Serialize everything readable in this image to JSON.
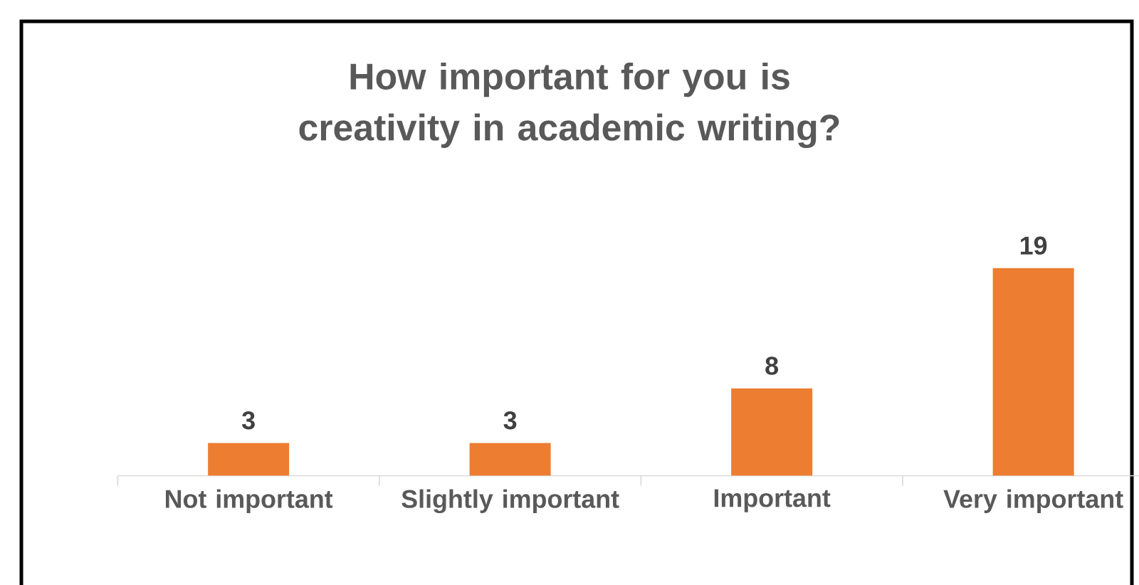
{
  "chart_data": {
    "type": "bar",
    "title": "How important for you is creativity in academic writing?",
    "categories": [
      "Not important",
      "Slightly important",
      "Important",
      "Very important"
    ],
    "values": [
      3,
      3,
      8,
      19
    ],
    "color": "#ed7d31",
    "data_labels": true
  }
}
